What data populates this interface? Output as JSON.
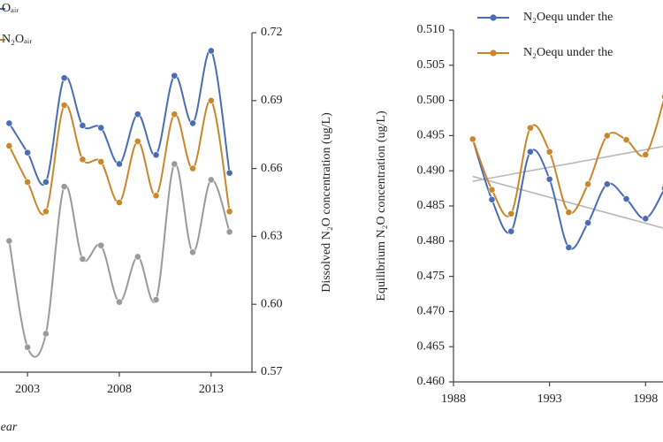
{
  "chart_data": [
    {
      "type": "line",
      "x_label": "ear",
      "y_label": "Dissolved N₂O concentration (ug/L)",
      "x": [
        2002,
        2003,
        2004,
        2005,
        2006,
        2007,
        2008,
        2009,
        2010,
        2011,
        2012,
        2013,
        2014
      ],
      "xlim": [
        2001.5,
        2014.5
      ],
      "xticks": [
        2003,
        2008,
        2013
      ],
      "ylim": [
        0.57,
        0.72
      ],
      "yticks": [
        0.57,
        {
          "value": 0.6,
          "label": "0.60"
        },
        0.63,
        0.66,
        0.69,
        0.72
      ],
      "series": [
        {
          "name": "Oₐᵢᵣ",
          "color": "#4a6cb3",
          "values": [
            0.68,
            0.667,
            0.654,
            0.7,
            0.679,
            0.678,
            0.662,
            0.684,
            0.666,
            0.701,
            0.68,
            0.712,
            0.658
          ]
        },
        {
          "name": "N₂Oₐᵢᵣ",
          "color": "#c9862a",
          "values": [
            0.67,
            0.654,
            0.641,
            0.688,
            0.664,
            0.663,
            0.645,
            0.672,
            0.648,
            0.684,
            0.66,
            0.69,
            0.641
          ]
        },
        {
          "color": "#9a9a9a",
          "values": [
            0.628,
            0.581,
            0.587,
            0.652,
            0.62,
            0.626,
            0.601,
            0.621,
            0.602,
            0.662,
            0.623,
            0.655,
            0.632
          ]
        }
      ]
    },
    {
      "type": "line",
      "y_label": "Equilibrium N₂O concentration (ug/L)",
      "x": [
        1989,
        1990,
        1991,
        1992,
        1993,
        1994,
        1995,
        1996,
        1997,
        1998,
        1999
      ],
      "xlim": [
        1988,
        1999
      ],
      "xticks": [
        1988,
        1993,
        1998
      ],
      "ylim": [
        0.46,
        0.51
      ],
      "yticks": [
        {
          "value": 0.46,
          "label": "0.460"
        },
        0.465,
        {
          "value": 0.47,
          "label": "0.470"
        },
        0.475,
        {
          "value": 0.48,
          "label": "0.480"
        },
        0.485,
        {
          "value": 0.49,
          "label": "0.490"
        },
        0.495,
        {
          "value": 0.5,
          "label": "0.500"
        },
        0.505,
        {
          "value": 0.51,
          "label": "0.510"
        }
      ],
      "series": [
        {
          "name": "N₂Oequ under the",
          "color": "#4a6cb3",
          "values": [
            0.4945,
            0.4859,
            0.4814,
            0.4927,
            0.4888,
            0.4791,
            0.4826,
            0.4881,
            0.486,
            0.4832,
            0.4875
          ]
        },
        {
          "name": "N₂Oequ under the",
          "color": "#c9862a",
          "values": [
            0.4945,
            0.4873,
            0.4839,
            0.4961,
            0.4927,
            0.4841,
            0.4881,
            0.495,
            0.4944,
            0.4923,
            0.5005
          ]
        }
      ],
      "trend_lines": [
        {
          "color": "#b8b8b8",
          "x": [
            1989,
            1999
          ],
          "values": [
            0.4885,
            0.4935
          ]
        },
        {
          "color": "#b8b8b8",
          "x": [
            1989,
            1999
          ],
          "values": [
            0.4892,
            0.4818
          ]
        }
      ]
    }
  ]
}
